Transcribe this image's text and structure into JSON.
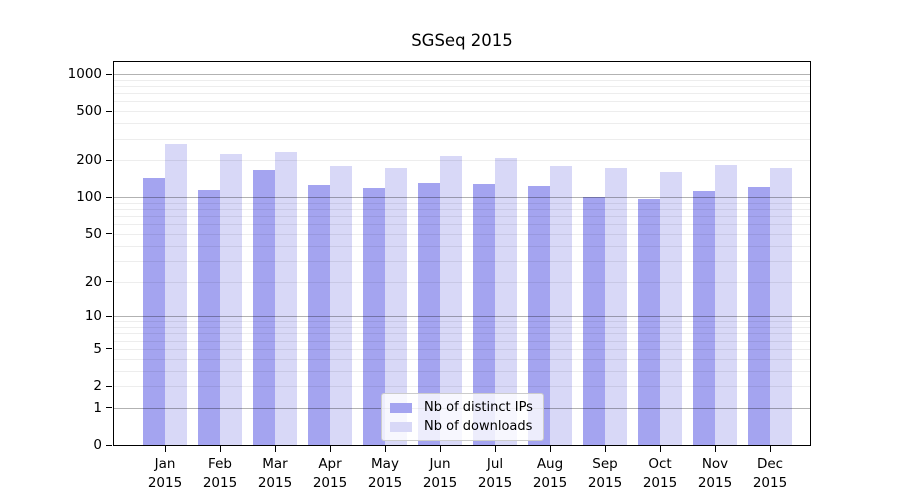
{
  "chart_data": {
    "type": "bar",
    "title": "SGSeq 2015",
    "categories": [
      "Jan",
      "Feb",
      "Mar",
      "Apr",
      "May",
      "Jun",
      "Jul",
      "Aug",
      "Sep",
      "Oct",
      "Nov",
      "Dec"
    ],
    "category_year": "2015",
    "series": [
      {
        "name": "Nb of distinct IPs",
        "color": "#a4a4f0",
        "values": [
          143,
          114,
          166,
          125,
          118,
          130,
          128,
          124,
          100,
          96,
          112,
          120
        ]
      },
      {
        "name": "Nb of downloads",
        "color": "#d8d8f7",
        "values": [
          270,
          225,
          232,
          180,
          173,
          217,
          210,
          179,
          173,
          159,
          183,
          173
        ]
      }
    ],
    "xlabel": "",
    "ylabel": "",
    "yscale": "log1p",
    "yticks": [
      0,
      1,
      2,
      5,
      10,
      20,
      50,
      100,
      200,
      500,
      1000
    ],
    "ylim": [
      0,
      1250
    ],
    "grid": true,
    "legend_position": "lower-center-inside"
  }
}
